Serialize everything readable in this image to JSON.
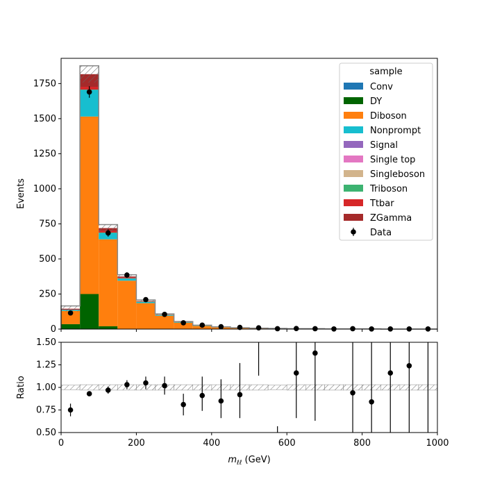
{
  "chart_data": {
    "type": "bar",
    "stacked": true,
    "x_bin_edges": [
      0,
      50,
      100,
      150,
      200,
      250,
      300,
      350,
      400,
      450,
      500,
      550,
      600,
      650,
      700,
      750,
      800,
      850,
      900,
      950,
      1000
    ],
    "xlabel_main": "m",
    "xlabel_sub": "ℓℓ",
    "xlabel_unit": " (GeV)",
    "xlim": [
      0,
      1000
    ],
    "x_ticks": [
      0,
      200,
      400,
      600,
      800,
      1000
    ],
    "top_panel": {
      "ylabel": "Events",
      "ylim": [
        0,
        1930
      ],
      "y_ticks": [
        0,
        250,
        500,
        750,
        1000,
        1250,
        1500,
        1750
      ],
      "series": [
        {
          "name": "Conv",
          "color": "#1f77b4",
          "values": [
            0,
            0,
            0,
            0,
            0,
            0,
            0,
            0,
            0,
            0,
            0,
            0,
            0,
            0,
            0,
            0,
            0,
            0,
            0,
            0
          ]
        },
        {
          "name": "DY",
          "color": "#006400",
          "values": [
            35,
            250,
            20,
            0,
            0,
            0,
            0,
            0,
            0,
            0,
            0,
            0,
            0,
            0,
            0,
            0,
            0,
            0,
            0,
            0
          ]
        },
        {
          "name": "Diboson",
          "color": "#ff7f0e",
          "values": [
            95,
            1265,
            620,
            345,
            185,
            95,
            45,
            22,
            12,
            7,
            5,
            3,
            2,
            2,
            1,
            1,
            1,
            0,
            0,
            0
          ]
        },
        {
          "name": "Nonprompt",
          "color": "#17becf",
          "values": [
            8,
            190,
            45,
            15,
            8,
            4,
            2,
            1,
            1,
            0,
            0,
            0,
            0,
            0,
            0,
            0,
            0,
            0,
            0,
            0
          ]
        },
        {
          "name": "Signal",
          "color": "#9467bd",
          "values": [
            0,
            0,
            0,
            0,
            0,
            0,
            0,
            0,
            0,
            0,
            0,
            0,
            0,
            0,
            0,
            0,
            0,
            0,
            0,
            0
          ]
        },
        {
          "name": "Single top",
          "color": "#e377c2",
          "values": [
            0,
            0,
            0,
            0,
            0,
            0,
            0,
            0,
            0,
            0,
            0,
            0,
            0,
            0,
            0,
            0,
            0,
            0,
            0,
            0
          ]
        },
        {
          "name": "Singleboson",
          "color": "#d2b48c",
          "values": [
            0,
            0,
            0,
            0,
            0,
            0,
            0,
            0,
            0,
            0,
            0,
            0,
            0,
            0,
            0,
            0,
            0,
            0,
            0,
            0
          ]
        },
        {
          "name": "Triboson",
          "color": "#3cb371",
          "values": [
            0,
            2,
            3,
            2,
            2,
            2,
            2,
            2,
            2,
            2,
            1,
            1,
            1,
            1,
            0,
            0,
            0,
            0,
            0,
            0
          ]
        },
        {
          "name": "Ttbar",
          "color": "#d62728",
          "values": [
            3,
            20,
            12,
            5,
            2,
            1,
            1,
            1,
            0,
            0,
            0,
            0,
            0,
            0,
            0,
            0,
            0,
            0,
            0,
            0
          ]
        },
        {
          "name": "ZGamma",
          "color": "#a52a2a",
          "values": [
            4,
            90,
            20,
            8,
            3,
            1,
            1,
            0,
            0,
            0,
            0,
            0,
            0,
            0,
            0,
            0,
            0,
            0,
            0,
            0
          ]
        }
      ],
      "total_mc": [
        145,
        1817,
        720,
        375,
        200,
        103,
        51,
        26,
        15,
        9,
        6,
        4,
        3,
        3,
        1,
        1,
        1,
        0,
        0,
        0
      ],
      "uncertainty": [
        20,
        60,
        25,
        12,
        8,
        5,
        3,
        2,
        1,
        1,
        1,
        1,
        0,
        0,
        0,
        0,
        0,
        0,
        0,
        0
      ],
      "data": [
        {
          "x": 25,
          "y": 115,
          "err": 12
        },
        {
          "x": 75,
          "y": 1690,
          "err": 41
        },
        {
          "x": 125,
          "y": 685,
          "err": 26
        },
        {
          "x": 175,
          "y": 385,
          "err": 20
        },
        {
          "x": 225,
          "y": 210,
          "err": 14
        },
        {
          "x": 275,
          "y": 105,
          "err": 10
        },
        {
          "x": 325,
          "y": 45,
          "err": 7
        },
        {
          "x": 375,
          "y": 28,
          "err": 5
        },
        {
          "x": 425,
          "y": 17,
          "err": 4
        },
        {
          "x": 475,
          "y": 12,
          "err": 3
        },
        {
          "x": 525,
          "y": 9,
          "err": 3
        },
        {
          "x": 575,
          "y": 3,
          "err": 2
        },
        {
          "x": 625,
          "y": 4,
          "err": 2
        },
        {
          "x": 675,
          "y": 3,
          "err": 2
        },
        {
          "x": 725,
          "y": 1,
          "err": 1
        },
        {
          "x": 775,
          "y": 3,
          "err": 2
        },
        {
          "x": 825,
          "y": 1,
          "err": 1
        },
        {
          "x": 875,
          "y": 1,
          "err": 1
        },
        {
          "x": 925,
          "y": 1,
          "err": 1
        },
        {
          "x": 975,
          "y": 1,
          "err": 1
        }
      ]
    },
    "ratio_panel": {
      "ylabel": "Ratio",
      "ylim": [
        0.5,
        1.5
      ],
      "y_ticks": [
        "0.50",
        "0.75",
        "1.00",
        "1.25",
        "1.50"
      ],
      "band_halfwidth": [
        0.025,
        0.03,
        0.03,
        0.03,
        0.03,
        0.03,
        0.03,
        0.03,
        0.03,
        0.03,
        0.03,
        0.025,
        0.03,
        0.03,
        0.03,
        0.03,
        0.03,
        0.03,
        0.03,
        0.03
      ],
      "points": [
        {
          "x": 25,
          "y": 0.75,
          "lo": 0.68,
          "hi": 0.82
        },
        {
          "x": 75,
          "y": 0.93,
          "lo": 0.91,
          "hi": 0.95
        },
        {
          "x": 125,
          "y": 0.97,
          "lo": 0.93,
          "hi": 1.01
        },
        {
          "x": 175,
          "y": 1.03,
          "lo": 0.98,
          "hi": 1.08
        },
        {
          "x": 225,
          "y": 1.05,
          "lo": 0.98,
          "hi": 1.12
        },
        {
          "x": 275,
          "y": 1.02,
          "lo": 0.92,
          "hi": 1.12
        },
        {
          "x": 325,
          "y": 0.81,
          "lo": 0.69,
          "hi": 0.93
        },
        {
          "x": 375,
          "y": 0.91,
          "lo": 0.74,
          "hi": 1.12
        },
        {
          "x": 425,
          "y": 0.85,
          "lo": 0.66,
          "hi": 1.09
        },
        {
          "x": 475,
          "y": 0.92,
          "lo": 0.66,
          "hi": 1.27
        },
        {
          "x": 525,
          "y": null,
          "lo": 1.13,
          "hi": 1.5
        },
        {
          "x": 575,
          "y": null,
          "lo": 0.5,
          "hi": 0.57
        },
        {
          "x": 625,
          "y": 1.16,
          "lo": 0.66,
          "hi": 1.5
        },
        {
          "x": 675,
          "y": 1.38,
          "lo": 0.63,
          "hi": 1.5
        },
        {
          "x": 775,
          "y": 0.94,
          "lo": 0.5,
          "hi": 1.5
        },
        {
          "x": 825,
          "y": 0.84,
          "lo": 0.5,
          "hi": 1.5
        },
        {
          "x": 875,
          "y": 1.16,
          "lo": 0.5,
          "hi": 1.5
        },
        {
          "x": 925,
          "y": 1.24,
          "lo": 0.5,
          "hi": 1.5
        },
        {
          "x": 975,
          "y": null,
          "lo": 0.5,
          "hi": 1.5
        }
      ]
    },
    "legend": {
      "title": "sample",
      "placement": "top-right",
      "data_label": "Data"
    }
  }
}
